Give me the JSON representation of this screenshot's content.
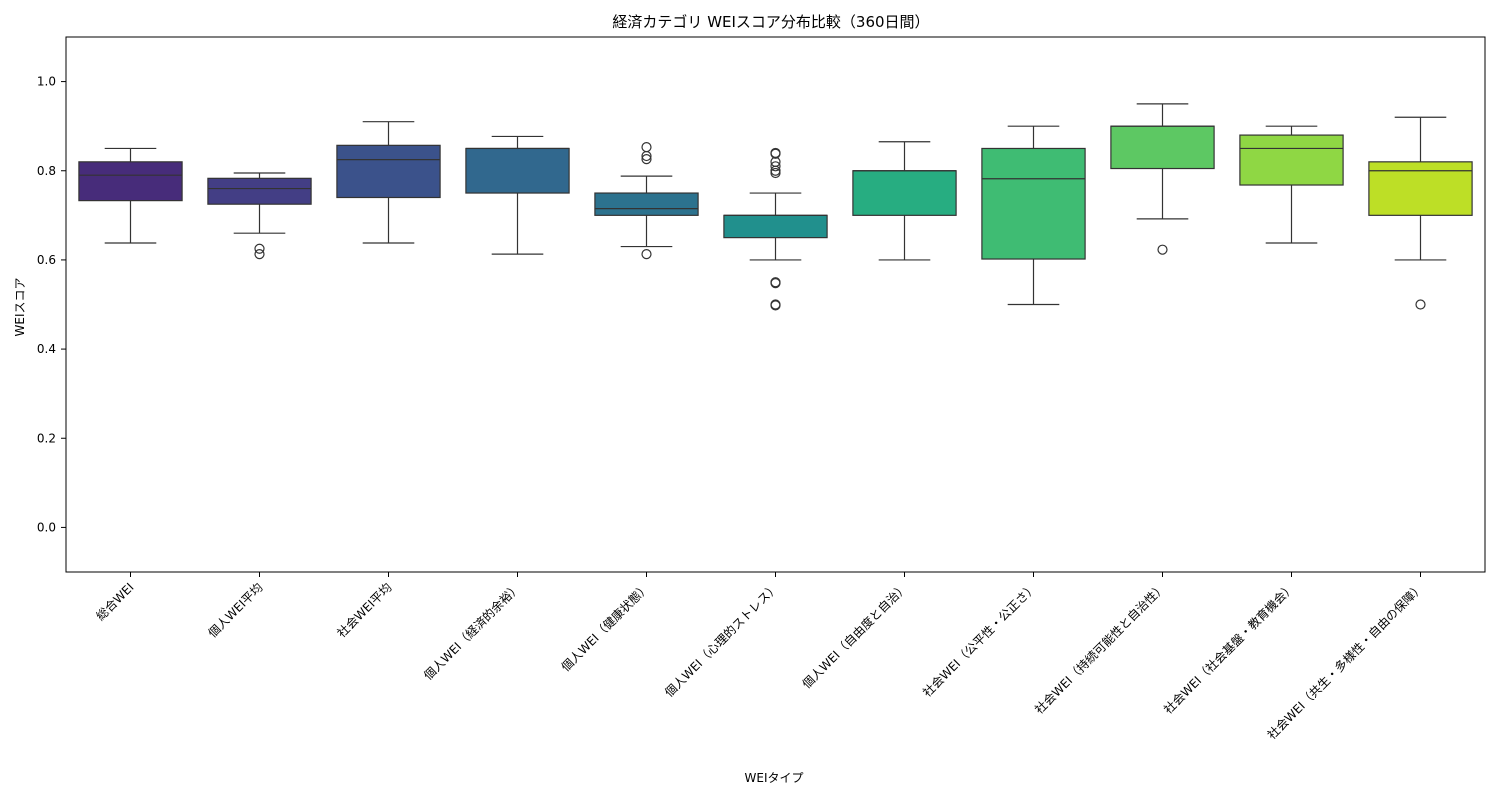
{
  "chart_data": {
    "type": "box",
    "title": "経済カテゴリ WEIスコア分布比較（360日間）",
    "xlabel": "WEIタイプ",
    "ylabel": "WEIスコア",
    "ylim": [
      -0.1,
      1.1
    ],
    "yticks": [
      "0.0",
      "0.2",
      "0.4",
      "0.6",
      "0.8",
      "1.0"
    ],
    "ytick_values": [
      0.0,
      0.2,
      0.4,
      0.6,
      0.8,
      1.0
    ],
    "grid": false,
    "categories": [
      "総合WEI",
      "個人WEI平均",
      "社会WEI平均",
      "個人WEI（経済的余裕）",
      "個人WEI（健康状態）",
      "個人WEI（心理的ストレス）",
      "個人WEI（自由度と自治）",
      "社会WEI（公平性・公正さ）",
      "社会WEI（持続可能性と自治性）",
      "社会WEI（社会基盤・教育機会）",
      "社会WEI（共生・多様性・自由の保障）"
    ],
    "boxes": [
      {
        "whisker_low": 0.638,
        "q1": 0.733,
        "median": 0.79,
        "q3": 0.82,
        "whisker_high": 0.85,
        "outliers": []
      },
      {
        "whisker_low": 0.66,
        "q1": 0.725,
        "median": 0.76,
        "q3": 0.783,
        "whisker_high": 0.795,
        "outliers": [
          0.625,
          0.613
        ]
      },
      {
        "whisker_low": 0.638,
        "q1": 0.74,
        "median": 0.825,
        "q3": 0.857,
        "whisker_high": 0.91,
        "outliers": []
      },
      {
        "whisker_low": 0.613,
        "q1": 0.75,
        "median": 0.85,
        "q3": 0.85,
        "whisker_high": 0.877,
        "outliers": []
      },
      {
        "whisker_low": 0.63,
        "q1": 0.7,
        "median": 0.715,
        "q3": 0.75,
        "whisker_high": 0.788,
        "outliers": [
          0.853,
          0.833,
          0.826,
          0.613
        ]
      },
      {
        "whisker_low": 0.6,
        "q1": 0.65,
        "median": 0.7,
        "q3": 0.7,
        "whisker_high": 0.75,
        "outliers": [
          0.84,
          0.838,
          0.82,
          0.81,
          0.8,
          0.795,
          0.55,
          0.548,
          0.5,
          0.498
        ]
      },
      {
        "whisker_low": 0.6,
        "q1": 0.7,
        "median": 0.8,
        "q3": 0.8,
        "whisker_high": 0.865,
        "outliers": []
      },
      {
        "whisker_low": 0.5,
        "q1": 0.602,
        "median": 0.782,
        "q3": 0.85,
        "whisker_high": 0.9,
        "outliers": []
      },
      {
        "whisker_low": 0.692,
        "q1": 0.805,
        "median": 0.9,
        "q3": 0.9,
        "whisker_high": 0.95,
        "outliers": [
          0.623
        ]
      },
      {
        "whisker_low": 0.638,
        "q1": 0.768,
        "median": 0.85,
        "q3": 0.88,
        "whisker_high": 0.9,
        "outliers": []
      },
      {
        "whisker_low": 0.6,
        "q1": 0.7,
        "median": 0.8,
        "q3": 0.82,
        "whisker_high": 0.92,
        "outliers": [
          0.5
        ]
      }
    ],
    "colors": [
      "#472c7a",
      "#433e85",
      "#3b528b",
      "#31688e",
      "#2c728e",
      "#21908d",
      "#27ad81",
      "#3fbc73",
      "#5dc863",
      "#8fd744",
      "#bddf26"
    ]
  }
}
